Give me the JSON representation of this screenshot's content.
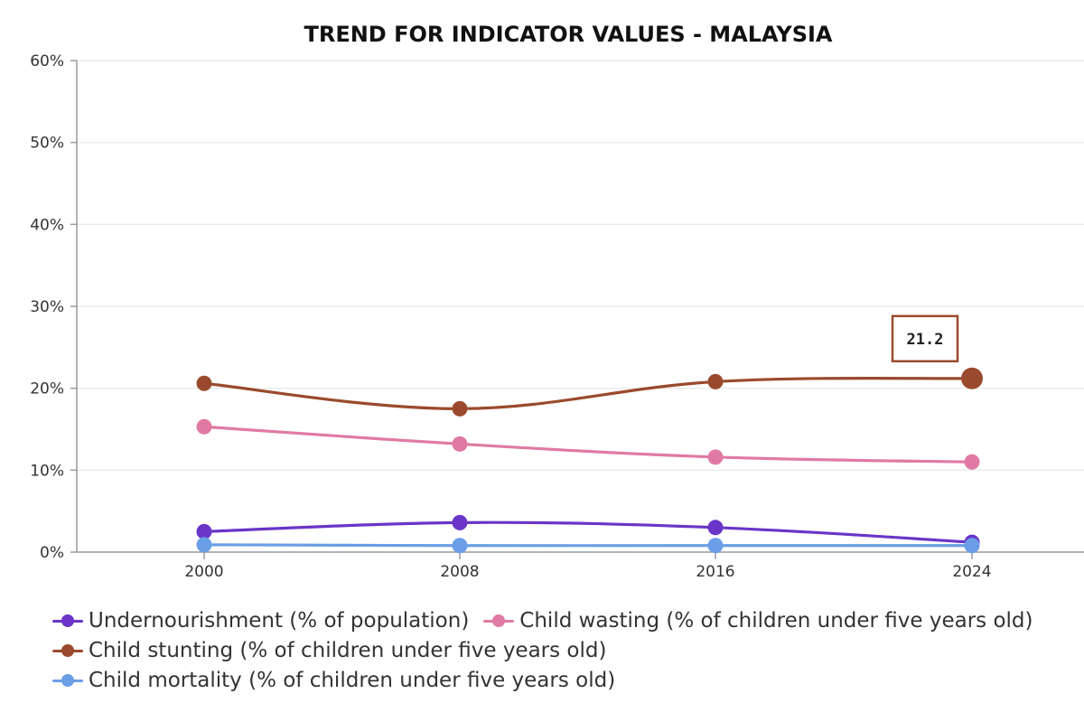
{
  "chart_data": {
    "type": "line",
    "title": "TREND FOR INDICATOR VALUES - MALAYSIA",
    "x": [
      "2000",
      "2008",
      "2016",
      "2024"
    ],
    "ylim": [
      0,
      60
    ],
    "yticks": [
      "0%",
      "10%",
      "20%",
      "30%",
      "40%",
      "50%",
      "60%"
    ],
    "grid": true,
    "legend_position": "bottom",
    "series": [
      {
        "name": "Undernourishment (% of population)",
        "color": "#6a35c8",
        "values": [
          2.5,
          3.6,
          3.0,
          1.2
        ]
      },
      {
        "name": "Child wasting (% of children under five years old)",
        "color": "#e07aa4",
        "values": [
          15.3,
          13.2,
          11.6,
          11.0
        ]
      },
      {
        "name": "Child stunting (% of children under five years old)",
        "color": "#9a4a2c",
        "values": [
          20.6,
          17.5,
          20.8,
          21.2
        ]
      },
      {
        "name": "Child mortality (% of children under five years old)",
        "color": "#6a9ee6",
        "values": [
          0.9,
          0.8,
          0.8,
          0.8
        ]
      }
    ],
    "tooltip": {
      "series_index": 2,
      "point_index": 3,
      "text": "21.2"
    }
  }
}
